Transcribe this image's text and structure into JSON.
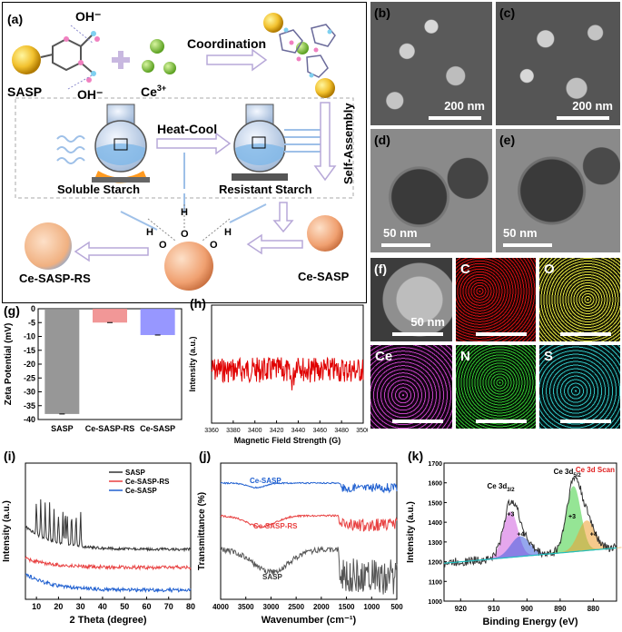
{
  "panel_labels": {
    "a": "(a)",
    "b": "(b)",
    "c": "(c)",
    "d": "(d)",
    "e": "(e)",
    "f": "(f)",
    "g": "(g)",
    "h": "(h)",
    "i": "(i)",
    "j": "(j)",
    "k": "(k)"
  },
  "scheme": {
    "sasp": "SASP",
    "oh1": "OH⁻",
    "oh2": "OH⁻",
    "ce": "Ce",
    "ce_sup": "3+",
    "coordination": "Coordination",
    "heat_cool": "Heat-Cool",
    "self_assembly": "Self-Assembly",
    "soluble_starch": "Soluble Starch",
    "resistant_starch": "Resistant Starch",
    "ce_sasp": "Ce-SASP",
    "ce_sasp_rs": "Ce-SASP-RS",
    "h1": "H",
    "o1": "O",
    "h2": "H",
    "o2": "O",
    "h3": "H",
    "o3": "O"
  },
  "micrographs": {
    "b_scale": "200 nm",
    "c_scale": "200 nm",
    "d_scale": "50 nm",
    "e_scale": "50 nm",
    "f_scale": "50 nm"
  },
  "eds": {
    "c": "C",
    "o": "O",
    "ce": "Ce",
    "n": "N",
    "s": "S"
  },
  "colors": {
    "gray_bar": "#8c8c8c",
    "red_bar": "#f08c8c",
    "blue_bar": "#8c8cff",
    "epr": "#e00000",
    "sasp": "#333333",
    "rs": "#e84040",
    "cesasp": "#2060d0",
    "scheme_border": "#000000",
    "arrow": "#b7a8d8"
  },
  "chart_data": [
    {
      "type": "bar",
      "panel": "g",
      "categories": [
        "SASP",
        "Ce-SASP-RS",
        "Ce-SASP"
      ],
      "values": [
        -38,
        -5,
        -9.5
      ],
      "ylabel": "Zeta Potential (mV)",
      "ylim": [
        -40,
        0
      ],
      "yticks": [
        0,
        -5,
        -10,
        -15,
        -20,
        -25,
        -30,
        -35,
        -40
      ]
    },
    {
      "type": "line",
      "panel": "h",
      "xlabel": "Magnetic Field Strength (G)",
      "ylabel": "Intensity (a.u.)",
      "xlim": [
        3360,
        3500
      ],
      "xticks": [
        3360,
        3380,
        3400,
        3420,
        3440,
        3460,
        3480,
        3500
      ],
      "series": [
        {
          "baseline": 0.55
        }
      ]
    },
    {
      "type": "line",
      "panel": "i",
      "xlabel": "2 Theta (degree)",
      "ylabel": "Intensity (a.u.)",
      "xlim": [
        5,
        80
      ],
      "xticks": [
        10,
        20,
        30,
        40,
        50,
        60,
        70,
        80
      ],
      "series": [
        {
          "name": "SASP"
        },
        {
          "name": "Ce-SASP-RS"
        },
        {
          "name": "Ce-SASP"
        }
      ]
    },
    {
      "type": "line",
      "panel": "j",
      "xlabel": "Wavenumber (cm⁻¹)",
      "ylabel": "Transmittance (%)",
      "xlim": [
        4000,
        500
      ],
      "xticks": [
        4000,
        3500,
        3000,
        2500,
        2000,
        1500,
        1000,
        500
      ],
      "series": [
        {
          "name": "Ce-SASP"
        },
        {
          "name": "Ce-SASP-RS"
        },
        {
          "name": "SASP"
        }
      ]
    },
    {
      "type": "line",
      "panel": "k",
      "xlabel": "Binding Energy (eV)",
      "ylabel": "Intensity (a.u.)",
      "xlim": [
        925,
        873
      ],
      "xticks": [
        920,
        910,
        900,
        890,
        880
      ],
      "ylim": [
        1000,
        1700
      ],
      "yticks": [
        1000,
        1100,
        1200,
        1300,
        1400,
        1500,
        1600,
        1700
      ],
      "title": "Ce 3d Scan",
      "annotations": [
        "Ce 3d3/2",
        "Ce 3d5/2",
        "+3",
        "+4",
        "+3",
        "+4"
      ]
    }
  ],
  "axis_text": {
    "g_ylabel": "Zeta Potential (mV)",
    "h_ylabel": "Intensity (a.u.)",
    "h_xlabel": "Magnetic Field Strength (G)",
    "i_ylabel": "Intensity (a.u.)",
    "i_xlabel": "2 Theta (degree)",
    "j_ylabel": "Transmittance (%)",
    "j_xlabel": "Wavenumber (cm⁻¹)",
    "k_ylabel": "Intensity (a.u.)",
    "k_xlabel": "Binding Energy (eV)",
    "k_title": "Ce 3d Scan",
    "k_ce32": "Ce 3d",
    "k_ce32_sub": "3/2",
    "k_ce52": "Ce 3d",
    "k_ce52_sub": "5/2",
    "k_p3a": "+3",
    "k_p4a": "+4",
    "k_p3b": "+3",
    "k_p4b": "+4",
    "j_cesasp": "Ce-SASP",
    "j_cesasprs": "Ce-SASP-RS",
    "j_sasp": "SASP",
    "i_leg1": "SASP",
    "i_leg2": "Ce-SASP-RS",
    "i_leg3": "Ce-SASP",
    "g_cat1": "SASP",
    "g_cat2": "Ce-SASP-RS",
    "g_cat3": "Ce-SASP"
  }
}
